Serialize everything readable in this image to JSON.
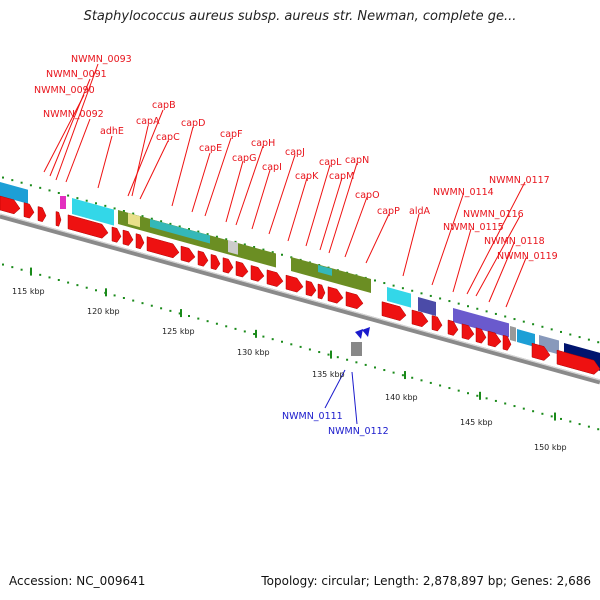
{
  "title": "Staphylococcus aureus subsp. aureus str. Newman, complete ge...",
  "footer": {
    "accession": "Accession: NC_009641",
    "summary": "Topology: circular; Length: 2,878,897 bp; Genes: 2,686"
  },
  "colors": {
    "forward_label": "#e8141c",
    "reverse_label": "#1a1acc",
    "backbone": "#888888",
    "tick": "#1a8a1a",
    "feature_arrow": "#ee1111",
    "cap_cluster": "#6b8e23",
    "cyan": "#33ddee",
    "blue_feature": "#3355cc",
    "purple": "#6a5acd",
    "navy": "#00146e"
  },
  "scale_labels": [
    "115 kbp",
    "120 kbp",
    "125 kbp",
    "130 kbp",
    "135 kbp",
    "140 kbp",
    "145 kbp",
    "150 kbp"
  ],
  "gene_labels_forward": [
    "NWMN_0093",
    "NWMN_0091",
    "NWMN_0090",
    "NWMN_0092",
    "adhE",
    "capB",
    "capA",
    "capC",
    "capD",
    "capE",
    "capF",
    "capG",
    "capH",
    "capI",
    "capJ",
    "capK",
    "capL",
    "capM",
    "capN",
    "capO",
    "capP",
    "aldA",
    "NWMN_0114",
    "NWMN_0117",
    "NWMN_0116",
    "NWMN_0115",
    "NWMN_0118",
    "NWMN_0119"
  ],
  "gene_labels_reverse": [
    "NWMN_0111",
    "NWMN_0112"
  ]
}
